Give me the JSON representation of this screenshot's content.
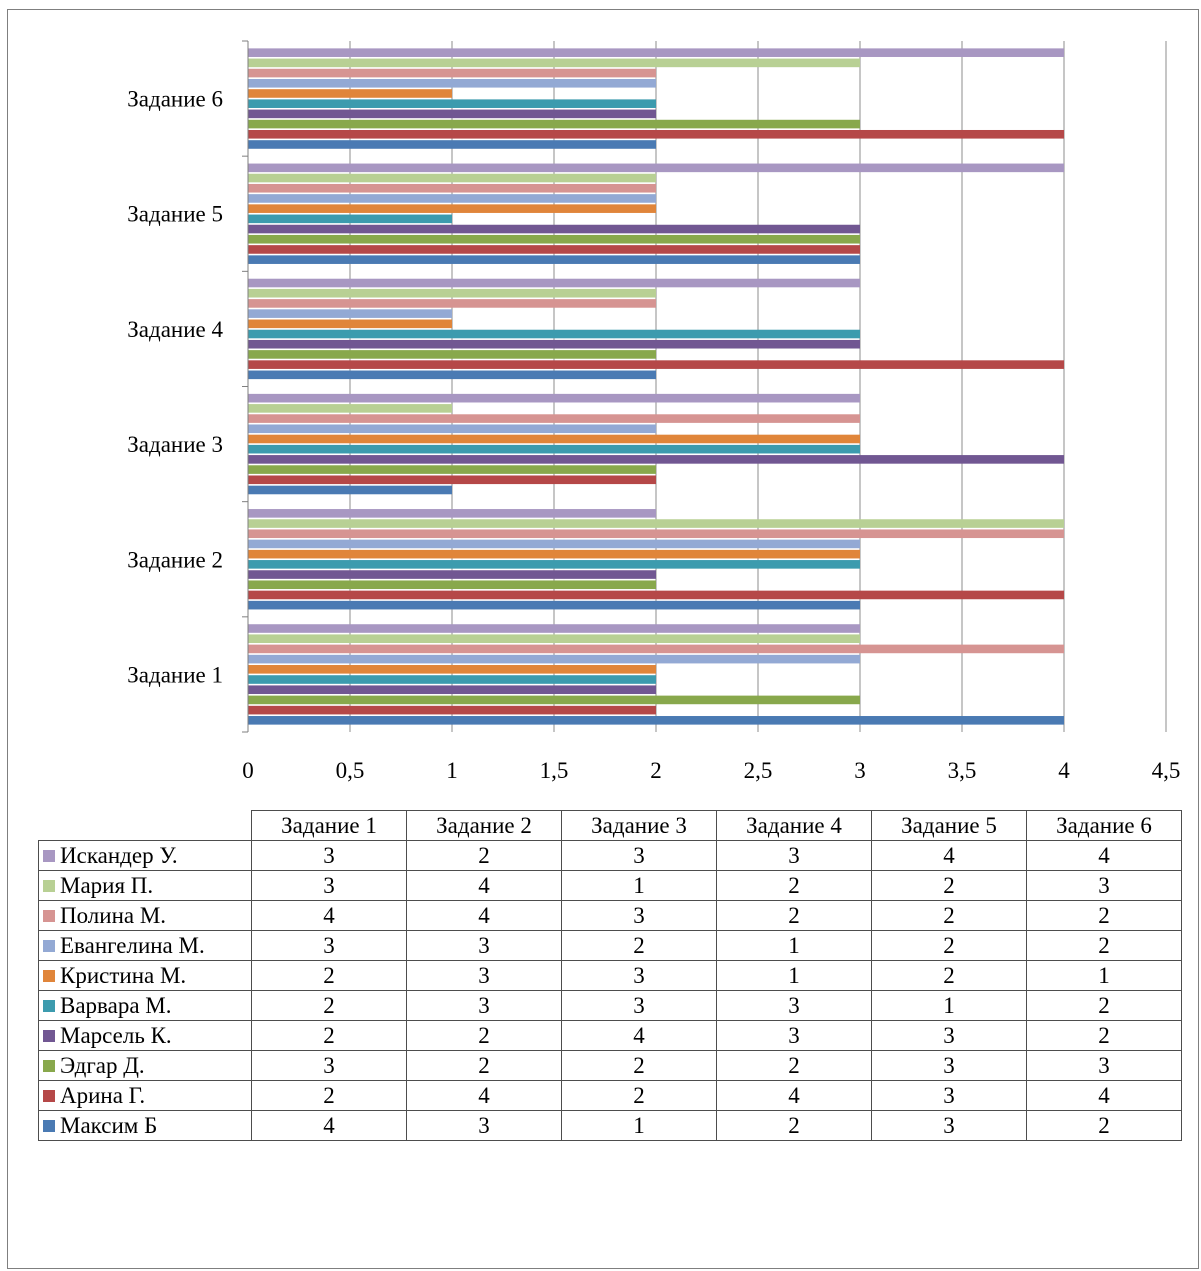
{
  "chart_data": {
    "type": "bar",
    "orientation": "horizontal",
    "categories": [
      "Задание 1",
      "Задание 2",
      "Задание 3",
      "Задание 4",
      "Задание 5",
      "Задание 6"
    ],
    "series": [
      {
        "name": "Максим Б",
        "color": "#4a7ab3",
        "values": [
          4,
          3,
          1,
          2,
          3,
          2
        ]
      },
      {
        "name": "Арина Г.",
        "color": "#b54848",
        "values": [
          2,
          4,
          2,
          4,
          3,
          4
        ]
      },
      {
        "name": "Эдгар Д.",
        "color": "#88a84c",
        "values": [
          3,
          2,
          2,
          2,
          3,
          3
        ]
      },
      {
        "name": "Марсель К.",
        "color": "#715792",
        "values": [
          2,
          2,
          4,
          3,
          3,
          2
        ]
      },
      {
        "name": "Варвара М.",
        "color": "#3c9bae",
        "values": [
          2,
          3,
          3,
          3,
          1,
          2
        ]
      },
      {
        "name": "Кристина М.",
        "color": "#e0853a",
        "values": [
          2,
          3,
          3,
          1,
          2,
          1
        ]
      },
      {
        "name": "Евангелина М.",
        "color": "#93a9d4",
        "values": [
          3,
          3,
          2,
          1,
          2,
          2
        ]
      },
      {
        "name": "Полина М.",
        "color": "#d69492",
        "values": [
          4,
          4,
          3,
          2,
          2,
          2
        ]
      },
      {
        "name": "Мария П.",
        "color": "#b8d094",
        "values": [
          3,
          4,
          1,
          2,
          2,
          3
        ]
      },
      {
        "name": "Искандер У.",
        "color": "#a897c2",
        "values": [
          3,
          2,
          3,
          3,
          4,
          4
        ]
      }
    ],
    "xlim": [
      0,
      4.5
    ],
    "x_ticks": [
      "0",
      "0,5",
      "1",
      "1,5",
      "2",
      "2,5",
      "3",
      "3,5",
      "4",
      "4,5"
    ],
    "grid": true,
    "legend": "data-table-below"
  }
}
